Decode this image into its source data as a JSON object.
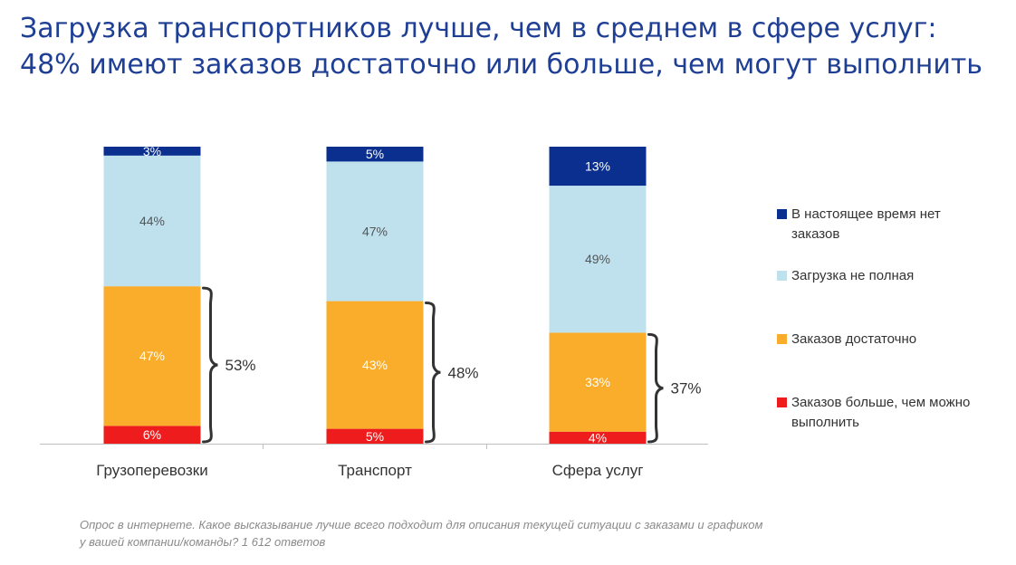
{
  "title": {
    "line1": "Загрузка транспортников лучше, чем в среднем в сфере услуг:",
    "line2": "48% имеют заказов достаточно или больше, чем могут выполнить"
  },
  "footnote": {
    "line1": "Опрос в интернете. Какое высказывание лучше всего подходит для описания текущей ситуации с заказами и графиком",
    "line2": "у вашей компании/команды?  1 612 ответов"
  },
  "colors": {
    "no_orders": "#0a2f8f",
    "partial": "#bfe1ee",
    "enough": "#f9ad2a",
    "more": "#ee1c1c",
    "axis": "#bfbfbf",
    "text_dark": "#333333"
  },
  "chart_data": {
    "type": "bar",
    "stacked": true,
    "percent_stacked": true,
    "categories": [
      "Грузоперевозки",
      "Транспорт",
      "Сфера услуг"
    ],
    "series": [
      {
        "name": "Заказов больше, чем можно выполнить",
        "labels": [
          "6%",
          "5%",
          "4%"
        ],
        "values": [
          6,
          5,
          4
        ],
        "color": "#ee1c1c"
      },
      {
        "name": "Заказов достаточно",
        "labels": [
          "47%",
          "43%",
          "33%"
        ],
        "values": [
          47,
          43,
          33
        ],
        "color": "#f9ad2a"
      },
      {
        "name": "Загрузка не полная",
        "labels": [
          "44%",
          "47%",
          "49%"
        ],
        "values": [
          44,
          47,
          49
        ],
        "color": "#bfe1ee"
      },
      {
        "name": "В настоящее время нет заказов",
        "labels": [
          "3%",
          "5%",
          "13%"
        ],
        "values": [
          3,
          5,
          13
        ],
        "color": "#0a2f8f"
      }
    ],
    "bracket_totals": [
      "53%",
      "48%",
      "37%"
    ],
    "legend": {
      "position": "right",
      "items": [
        {
          "line1": "В настоящее время нет",
          "line2": "заказов",
          "color": "#0a2f8f"
        },
        {
          "line1": "Загрузка не полная",
          "line2": "",
          "color": "#bfe1ee"
        },
        {
          "line1": "Заказов достаточно",
          "line2": "",
          "color": "#f9ad2a"
        },
        {
          "line1": "Заказов больше, чем можно",
          "line2": "выполнить",
          "color": "#ee1c1c"
        }
      ]
    },
    "ylim": [
      0,
      100
    ],
    "grid": false
  }
}
